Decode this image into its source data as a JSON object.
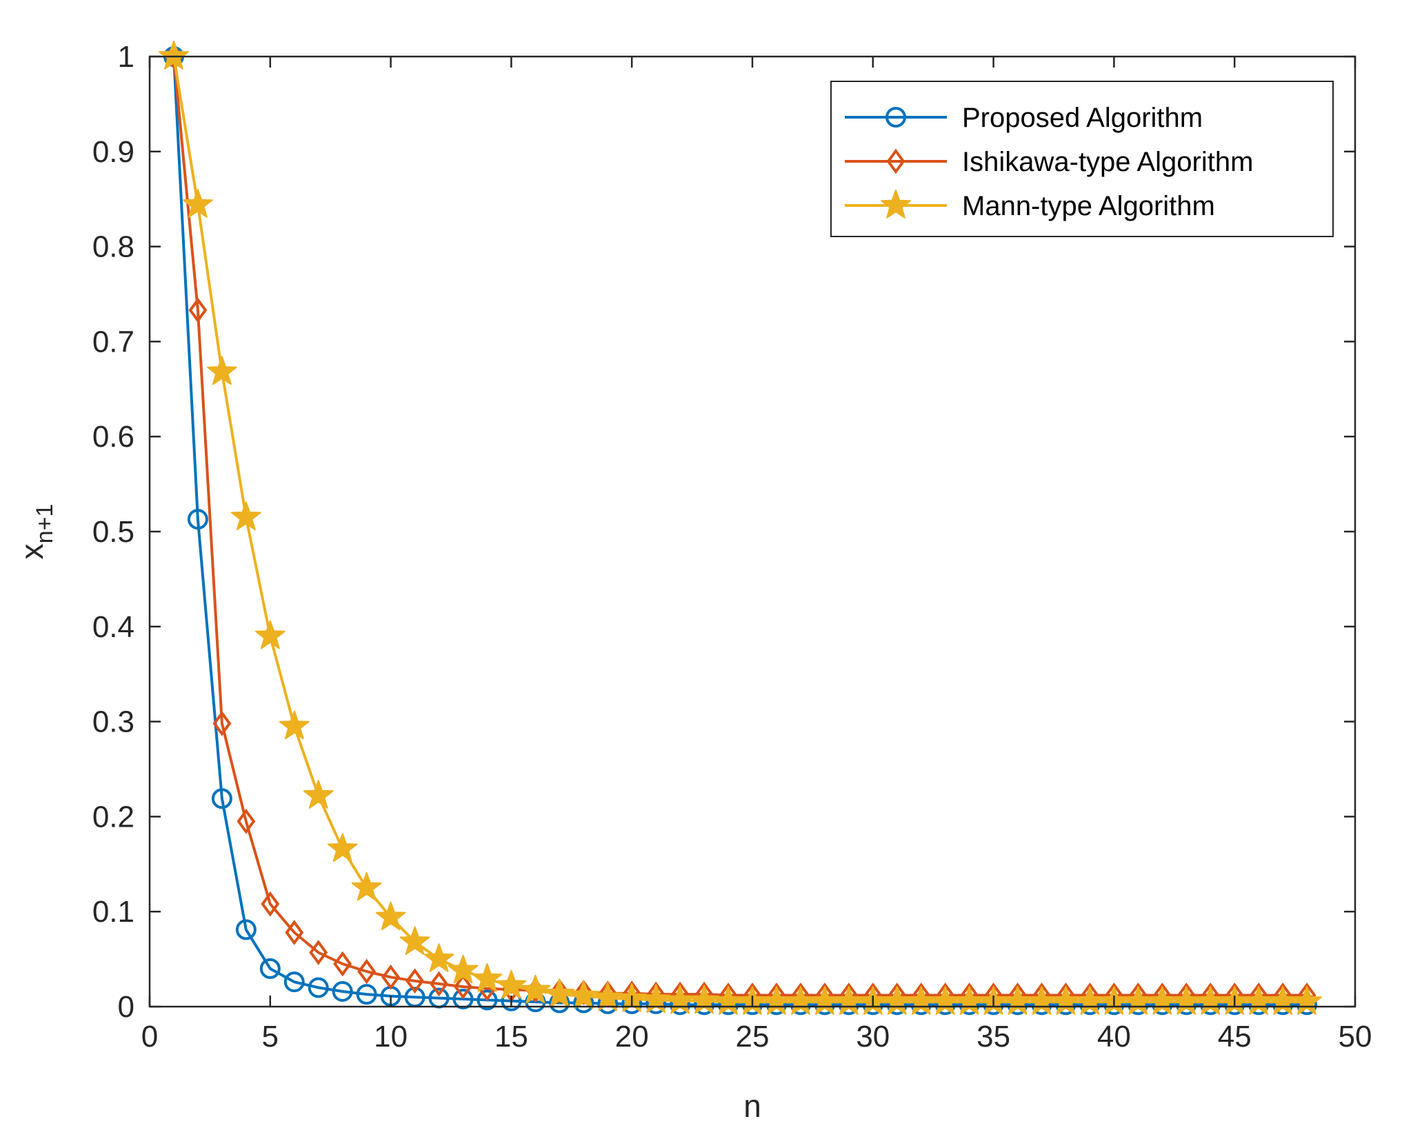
{
  "chart_data": {
    "type": "line",
    "xlabel": "n",
    "ylabel": {
      "base": "x",
      "subscript": "n+1"
    },
    "xlim": [
      0,
      50
    ],
    "ylim": [
      0,
      1
    ],
    "xticks": [
      0,
      5,
      10,
      15,
      20,
      25,
      30,
      35,
      40,
      45,
      50
    ],
    "yticks": [
      0,
      0.1,
      0.2,
      0.3,
      0.4,
      0.5,
      0.6,
      0.7,
      0.8,
      0.9,
      1
    ],
    "ytick_labels": [
      "0",
      "0.1",
      "0.2",
      "0.3",
      "0.4",
      "0.5",
      "0.6",
      "0.7",
      "0.8",
      "0.9",
      "1"
    ],
    "grid": false,
    "box": true,
    "legend": {
      "placement": "top-right"
    },
    "x": [
      1,
      2,
      3,
      4,
      5,
      6,
      7,
      8,
      9,
      10,
      11,
      12,
      13,
      14,
      15,
      16,
      17,
      18,
      19,
      20,
      21,
      22,
      23,
      24,
      25,
      26,
      27,
      28,
      29,
      30,
      31,
      32,
      33,
      34,
      35,
      36,
      37,
      38,
      39,
      40,
      41,
      42,
      43,
      44,
      45,
      46,
      47,
      48
    ],
    "series": [
      {
        "name": "Proposed Algorithm",
        "color": "#0072BD",
        "marker": "circle",
        "values": [
          1.0,
          0.513,
          0.219,
          0.081,
          0.04,
          0.026,
          0.02,
          0.016,
          0.013,
          0.011,
          0.01,
          0.009,
          0.008,
          0.007,
          0.006,
          0.005,
          0.004,
          0.004,
          0.003,
          0.003,
          0.003,
          0.002,
          0.002,
          0.002,
          0.002,
          0.002,
          0.002,
          0.002,
          0.002,
          0.002,
          0.002,
          0.002,
          0.002,
          0.002,
          0.002,
          0.002,
          0.002,
          0.002,
          0.002,
          0.002,
          0.002,
          0.002,
          0.002,
          0.002,
          0.002,
          0.002,
          0.002,
          0.002
        ]
      },
      {
        "name": "Ishikawa-type Algorithm",
        "color": "#D95319",
        "marker": "diamond",
        "values": [
          1.0,
          0.733,
          0.298,
          0.195,
          0.108,
          0.078,
          0.057,
          0.045,
          0.037,
          0.031,
          0.027,
          0.024,
          0.021,
          0.019,
          0.018,
          0.017,
          0.016,
          0.015,
          0.014,
          0.014,
          0.013,
          0.013,
          0.013,
          0.012,
          0.012,
          0.012,
          0.012,
          0.012,
          0.012,
          0.012,
          0.012,
          0.012,
          0.012,
          0.012,
          0.012,
          0.012,
          0.012,
          0.012,
          0.012,
          0.012,
          0.012,
          0.012,
          0.012,
          0.012,
          0.012,
          0.012,
          0.012,
          0.012
        ]
      },
      {
        "name": "Mann-type Algorithm",
        "color": "#EDB120",
        "marker": "star",
        "values": [
          1.0,
          0.844,
          0.668,
          0.515,
          0.39,
          0.295,
          0.222,
          0.166,
          0.125,
          0.094,
          0.068,
          0.05,
          0.038,
          0.029,
          0.022,
          0.017,
          0.013,
          0.011,
          0.009,
          0.008,
          0.007,
          0.006,
          0.006,
          0.005,
          0.005,
          0.005,
          0.005,
          0.005,
          0.005,
          0.005,
          0.005,
          0.005,
          0.005,
          0.005,
          0.005,
          0.005,
          0.005,
          0.005,
          0.005,
          0.005,
          0.005,
          0.005,
          0.005,
          0.005,
          0.005,
          0.005,
          0.005,
          0.005
        ]
      }
    ]
  }
}
